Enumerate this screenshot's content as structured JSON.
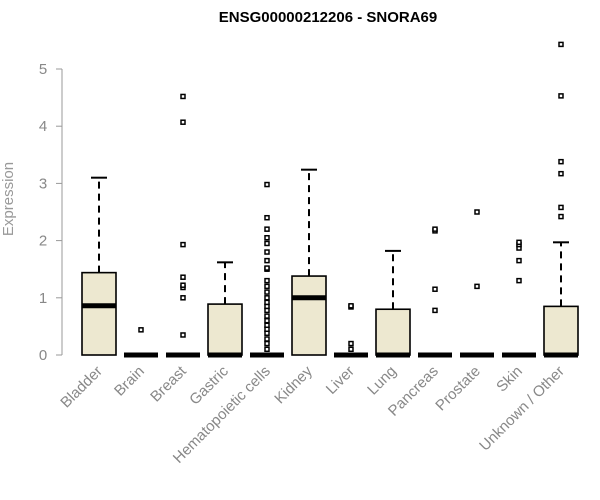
{
  "chart_data": {
    "type": "box",
    "title": "ENSG00000212206 - SNORA69",
    "xlabel": "",
    "ylabel": "Expression",
    "ylim": [
      0,
      5.5
    ],
    "yticks": [
      0,
      1,
      2,
      3,
      4,
      5
    ],
    "grid": false,
    "box_fill": "#ede8d0",
    "box_stroke": "#000000",
    "categories": [
      "Bladder",
      "Brain",
      "Breast",
      "Gastric",
      "Hematopoietic cells",
      "Kidney",
      "Liver",
      "Lung",
      "Pancreas",
      "Prostate",
      "Skin",
      "Unknown / Other"
    ],
    "boxes": [
      {
        "category": "Bladder",
        "q1": 0,
        "median": 0.86,
        "q3": 1.44,
        "whisker_low": 0,
        "whisker_high": 3.1,
        "outliers": []
      },
      {
        "category": "Brain",
        "q1": 0,
        "median": 0,
        "q3": 0,
        "whisker_low": 0,
        "whisker_high": 0,
        "outliers": [
          0.44
        ]
      },
      {
        "category": "Breast",
        "q1": 0,
        "median": 0,
        "q3": 0,
        "whisker_low": 0,
        "whisker_high": 0,
        "outliers": [
          0.35,
          1.0,
          1.18,
          1.22,
          1.36,
          1.93,
          4.07,
          4.52
        ]
      },
      {
        "category": "Gastric",
        "q1": 0,
        "median": 0,
        "q3": 0.89,
        "whisker_low": 0,
        "whisker_high": 1.62,
        "outliers": []
      },
      {
        "category": "Hematopoietic cells",
        "q1": 0,
        "median": 0,
        "q3": 0,
        "whisker_low": 0,
        "whisker_high": 0,
        "outliers": [
          0.1,
          0.2,
          0.28,
          0.38,
          0.45,
          0.52,
          0.6,
          0.68,
          0.78,
          0.85,
          0.92,
          1.0,
          1.1,
          1.2,
          1.3,
          1.5,
          1.52,
          1.65,
          1.8,
          1.95,
          2.05,
          2.2,
          2.4,
          2.98
        ]
      },
      {
        "category": "Kidney",
        "q1": 0,
        "median": 1.0,
        "q3": 1.38,
        "whisker_low": 0,
        "whisker_high": 3.24,
        "outliers": []
      },
      {
        "category": "Liver",
        "q1": 0,
        "median": 0,
        "q3": 0,
        "whisker_low": 0,
        "whisker_high": 0,
        "outliers": [
          0.1,
          0.2,
          0.84,
          0.86
        ]
      },
      {
        "category": "Lung",
        "q1": 0,
        "median": 0,
        "q3": 0.8,
        "whisker_low": 0,
        "whisker_high": 1.82,
        "outliers": []
      },
      {
        "category": "Pancreas",
        "q1": 0,
        "median": 0,
        "q3": 0,
        "whisker_low": 0,
        "whisker_high": 0,
        "outliers": [
          0.78,
          1.15,
          2.17,
          2.2
        ]
      },
      {
        "category": "Prostate",
        "q1": 0,
        "median": 0,
        "q3": 0,
        "whisker_low": 0,
        "whisker_high": 0,
        "outliers": [
          1.2,
          2.5
        ]
      },
      {
        "category": "Skin",
        "q1": 0,
        "median": 0,
        "q3": 0,
        "whisker_low": 0,
        "whisker_high": 0,
        "outliers": [
          1.3,
          1.65,
          1.87,
          1.93,
          1.97
        ]
      },
      {
        "category": "Unknown / Other",
        "q1": 0,
        "median": 0,
        "q3": 0.85,
        "whisker_low": 0,
        "whisker_high": 1.97,
        "outliers": [
          2.42,
          2.58,
          3.17,
          3.38,
          4.53,
          5.43
        ]
      }
    ]
  }
}
